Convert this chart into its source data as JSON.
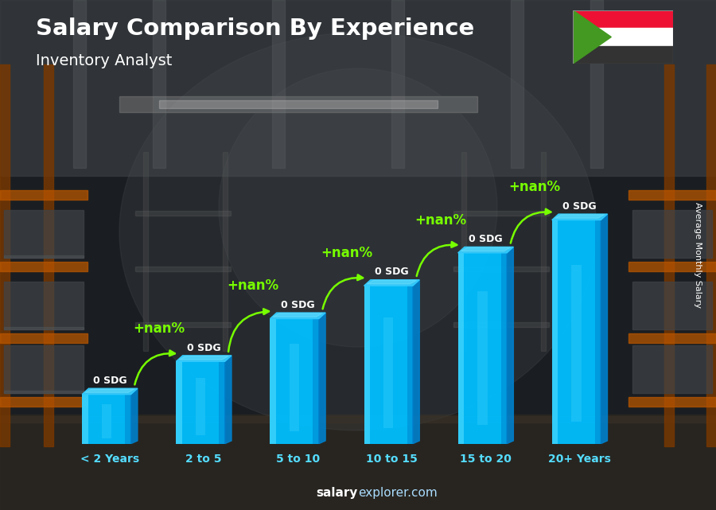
{
  "title": "Salary Comparison By Experience",
  "subtitle": "Inventory Analyst",
  "categories": [
    "< 2 Years",
    "2 to 5",
    "5 to 10",
    "10 to 15",
    "15 to 20",
    "20+ Years"
  ],
  "salary_labels": [
    "0 SDG",
    "0 SDG",
    "0 SDG",
    "0 SDG",
    "0 SDG",
    "0 SDG"
  ],
  "pct_labels": [
    "+nan%",
    "+nan%",
    "+nan%",
    "+nan%",
    "+nan%"
  ],
  "bar_heights": [
    1.5,
    2.5,
    3.8,
    4.8,
    5.8,
    6.8
  ],
  "bar_color_main": "#00BFFF",
  "bar_color_light": "#55DDFF",
  "bar_color_dark": "#0080CC",
  "bar_color_top": "#33CCFF",
  "pct_color": "#77FF00",
  "title_color": "#FFFFFF",
  "subtitle_color": "#FFFFFF",
  "label_color": "#FFFFFF",
  "sdg_color": "#FFFFFF",
  "ylabel": "Average Monthly Salary",
  "footer_salary": "salary",
  "footer_explorer": "explorer.com",
  "footer_color_salary": "#FFFFFF",
  "footer_color_explorer": "#77DDFF",
  "bg_colors": [
    "#1a1a1a",
    "#2a2a2a",
    "#3a3530",
    "#4a4540"
  ],
  "flag_red": "#EE1133",
  "flag_white": "#FFFFFF",
  "flag_black": "#333333",
  "flag_green": "#449922"
}
